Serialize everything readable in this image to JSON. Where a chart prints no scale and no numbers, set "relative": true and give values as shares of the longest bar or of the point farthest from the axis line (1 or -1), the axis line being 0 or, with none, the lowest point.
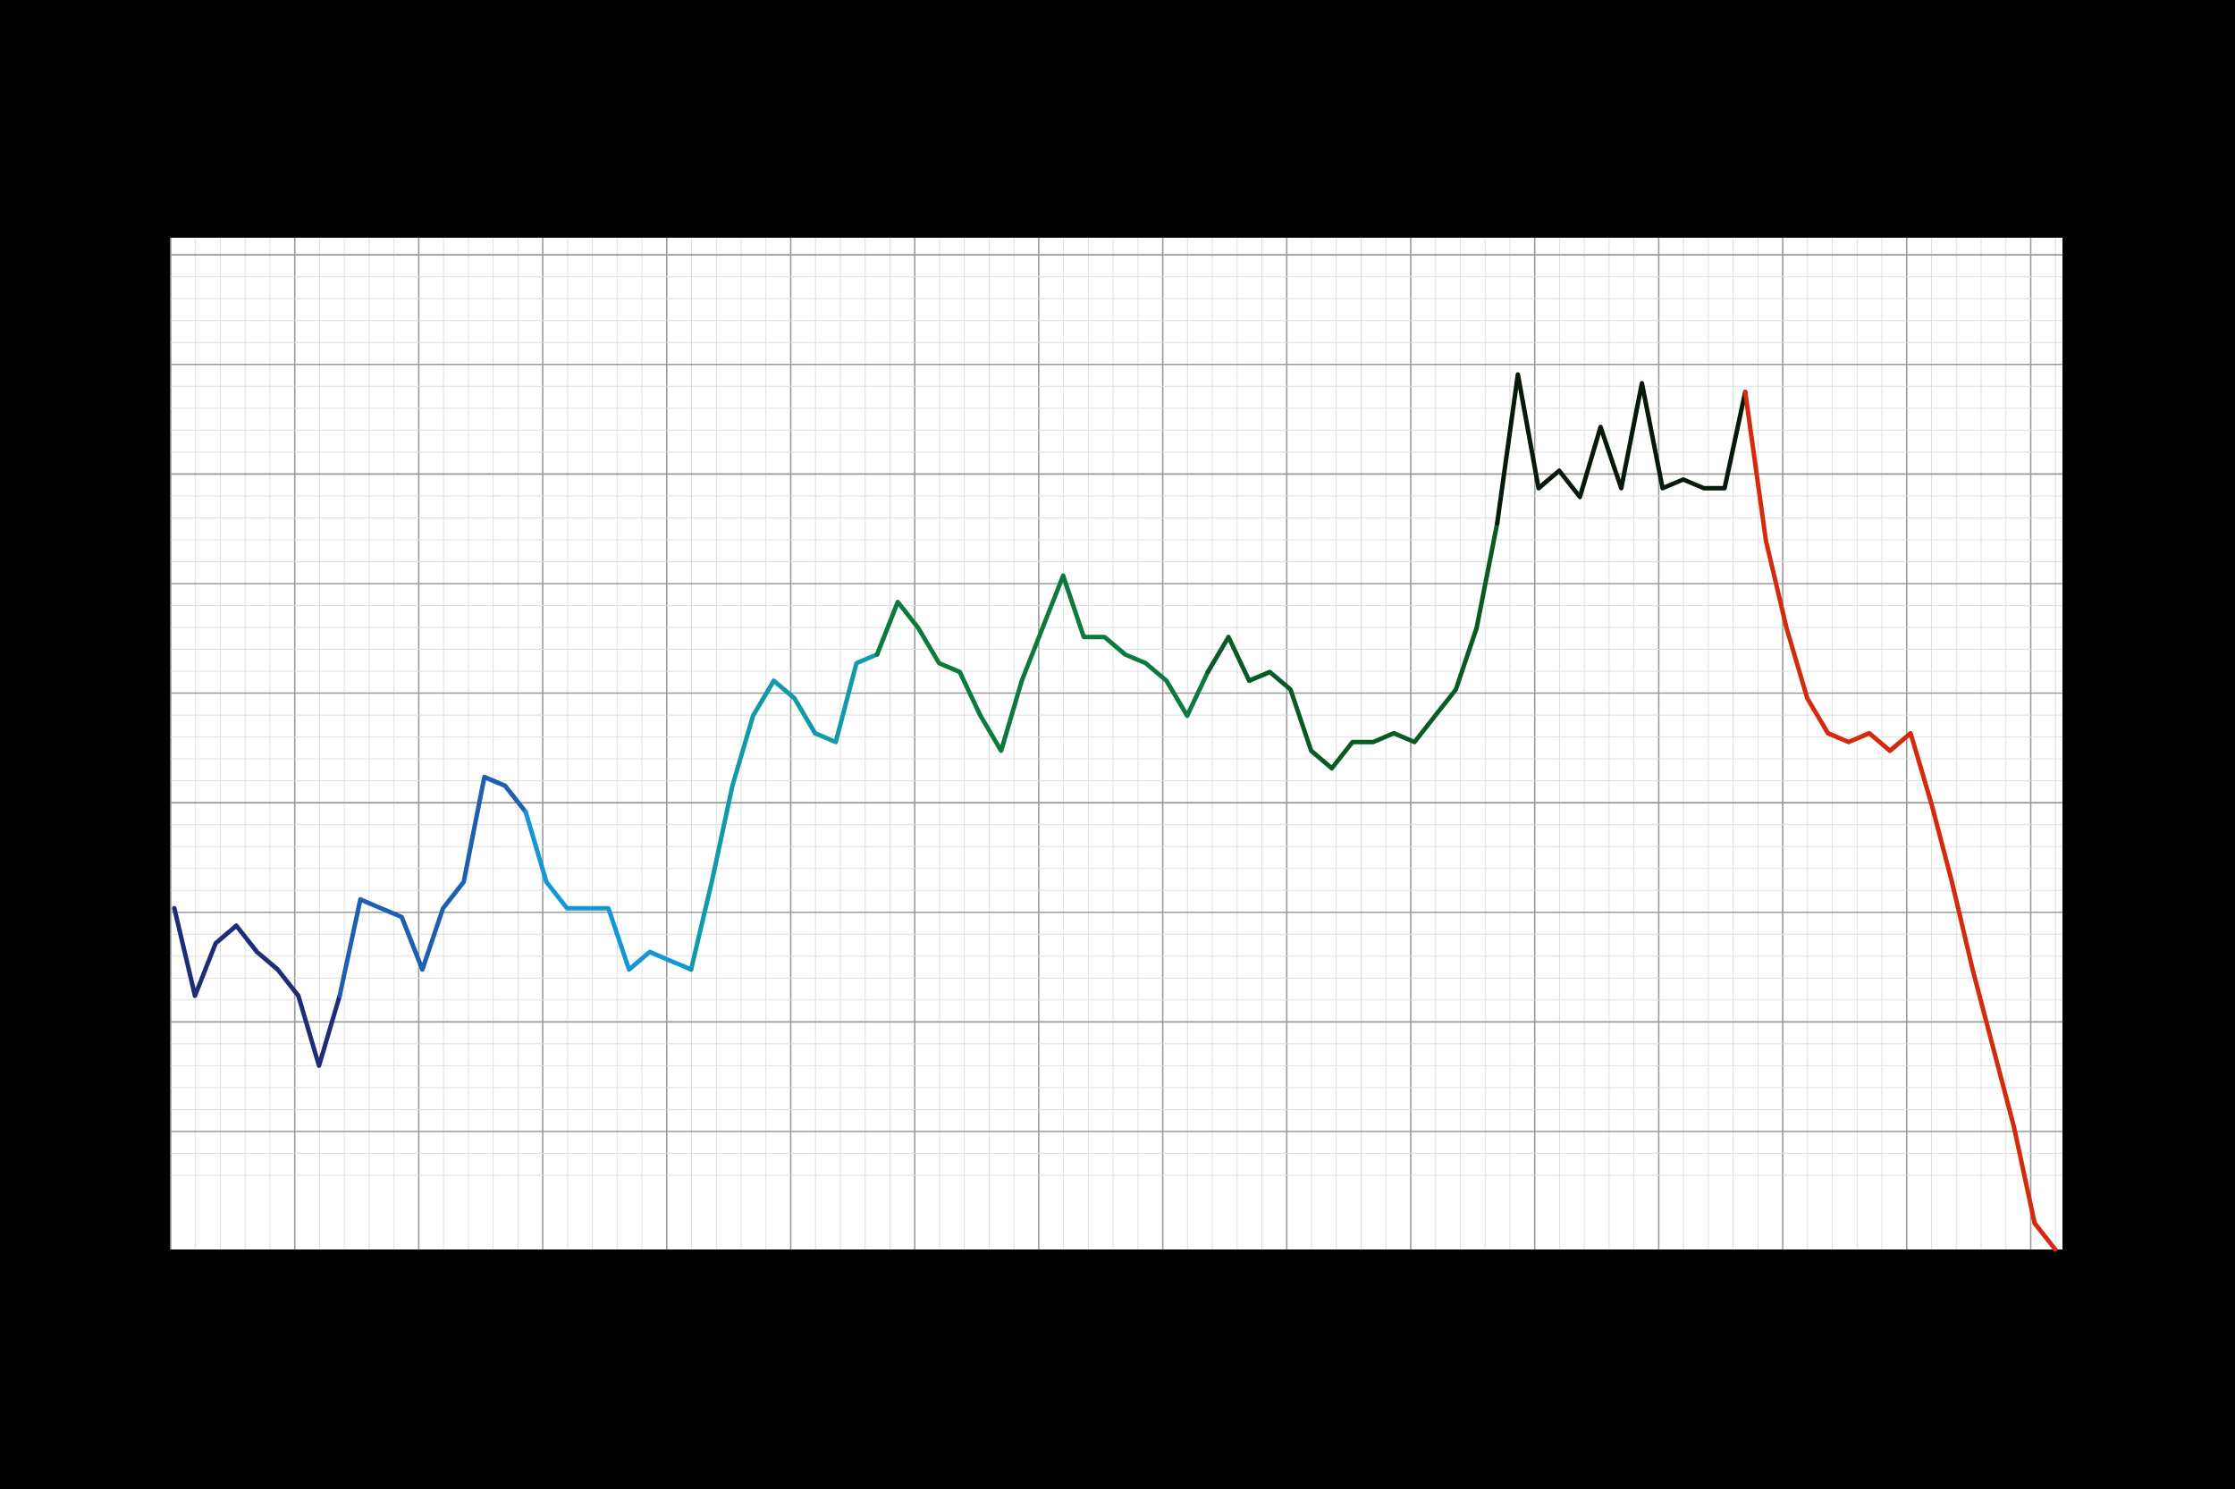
{
  "chart_data": {
    "type": "line",
    "relative": true,
    "grid": true,
    "marker": "none",
    "line_style": "solid",
    "categories": [
      null,
      null,
      null,
      null,
      null,
      null,
      null,
      null,
      null,
      null,
      null,
      null,
      null,
      null,
      null,
      null,
      null,
      null,
      null,
      null,
      null,
      null,
      null,
      null,
      null,
      null,
      null,
      null,
      null,
      null,
      null,
      null,
      null,
      null,
      null,
      null,
      null,
      null,
      null,
      null,
      null,
      null,
      null,
      null,
      null,
      null,
      null,
      null,
      null,
      null,
      null,
      null,
      null,
      null,
      null,
      null,
      null,
      null,
      null,
      null,
      null,
      null,
      null,
      null,
      null,
      null,
      null,
      null,
      null,
      null,
      null,
      null,
      null,
      null,
      null,
      null,
      null,
      null,
      null,
      null,
      null,
      null,
      null,
      null,
      null,
      null,
      null,
      null,
      null,
      null,
      null,
      null
    ],
    "series": [
      {
        "color": "#1f2d78",
        "values": [
          0.39,
          0.29,
          0.35,
          0.37,
          0.34,
          0.32,
          0.29,
          0.21,
          0.29,
          null,
          null,
          null,
          null,
          null,
          null,
          null,
          null,
          null,
          null,
          null,
          null,
          null,
          null,
          null,
          null,
          null,
          null,
          null,
          null,
          null,
          null,
          null,
          null,
          null,
          null,
          null,
          null,
          null,
          null,
          null,
          null,
          null,
          null,
          null,
          null,
          null,
          null,
          null,
          null,
          null,
          null,
          null,
          null,
          null,
          null,
          null,
          null,
          null,
          null,
          null,
          null,
          null,
          null,
          null,
          null,
          null,
          null,
          null,
          null,
          null,
          null,
          null,
          null,
          null,
          null,
          null,
          null,
          null,
          null,
          null,
          null,
          null,
          null,
          null,
          null,
          null,
          null,
          null,
          null,
          null,
          null,
          null
        ]
      },
      {
        "color": "#1f5fb0",
        "values": [
          null,
          null,
          null,
          null,
          null,
          null,
          null,
          null,
          0.29,
          0.4,
          0.39,
          0.38,
          0.32,
          0.39,
          0.42,
          0.54,
          0.53,
          0.5,
          null,
          null,
          null,
          null,
          null,
          null,
          null,
          null,
          null,
          null,
          null,
          null,
          null,
          null,
          null,
          null,
          null,
          null,
          null,
          null,
          null,
          null,
          null,
          null,
          null,
          null,
          null,
          null,
          null,
          null,
          null,
          null,
          null,
          null,
          null,
          null,
          null,
          null,
          null,
          null,
          null,
          null,
          null,
          null,
          null,
          null,
          null,
          null,
          null,
          null,
          null,
          null,
          null,
          null,
          null,
          null,
          null,
          null,
          null,
          null,
          null,
          null,
          null,
          null,
          null,
          null,
          null,
          null,
          null,
          null,
          null,
          null,
          null,
          null
        ]
      },
      {
        "color": "#1596d6",
        "values": [
          null,
          null,
          null,
          null,
          null,
          null,
          null,
          null,
          null,
          null,
          null,
          null,
          null,
          null,
          null,
          null,
          null,
          0.5,
          0.42,
          0.39,
          0.39,
          0.39,
          0.32,
          0.34,
          0.33,
          0.32,
          null,
          null,
          null,
          null,
          null,
          null,
          null,
          null,
          null,
          null,
          null,
          null,
          null,
          null,
          null,
          null,
          null,
          null,
          null,
          null,
          null,
          null,
          null,
          null,
          null,
          null,
          null,
          null,
          null,
          null,
          null,
          null,
          null,
          null,
          null,
          null,
          null,
          null,
          null,
          null,
          null,
          null,
          null,
          null,
          null,
          null,
          null,
          null,
          null,
          null,
          null,
          null,
          null,
          null,
          null,
          null,
          null,
          null,
          null,
          null,
          null,
          null,
          null,
          null,
          null,
          null
        ]
      },
      {
        "color": "#129aa8",
        "values": [
          null,
          null,
          null,
          null,
          null,
          null,
          null,
          null,
          null,
          null,
          null,
          null,
          null,
          null,
          null,
          null,
          null,
          null,
          null,
          null,
          null,
          null,
          null,
          null,
          null,
          0.32,
          0.42,
          0.53,
          0.61,
          0.65,
          0.63,
          0.59,
          0.58,
          0.67,
          0.68,
          null,
          null,
          null,
          null,
          null,
          null,
          null,
          null,
          null,
          null,
          null,
          null,
          null,
          null,
          null,
          null,
          null,
          null,
          null,
          null,
          null,
          null,
          null,
          null,
          null,
          null,
          null,
          null,
          null,
          null,
          null,
          null,
          null,
          null,
          null,
          null,
          null,
          null,
          null,
          null,
          null,
          null,
          null,
          null,
          null,
          null,
          null,
          null,
          null,
          null,
          null,
          null,
          null,
          null,
          null,
          null,
          null
        ]
      },
      {
        "color": "#0c7a3c",
        "values": [
          null,
          null,
          null,
          null,
          null,
          null,
          null,
          null,
          null,
          null,
          null,
          null,
          null,
          null,
          null,
          null,
          null,
          null,
          null,
          null,
          null,
          null,
          null,
          null,
          null,
          null,
          null,
          null,
          null,
          null,
          null,
          null,
          null,
          null,
          0.68,
          0.74,
          0.71,
          0.67,
          0.66,
          0.61,
          0.57,
          0.65,
          0.71,
          0.77,
          0.7,
          0.7,
          0.68,
          0.67,
          0.65,
          0.61,
          0.66,
          null,
          null,
          null,
          null,
          null,
          null,
          null,
          null,
          null,
          null,
          null,
          null,
          null,
          null,
          null,
          null,
          null,
          null,
          null,
          null,
          null,
          null,
          null,
          null,
          null,
          null,
          null,
          null,
          null,
          null,
          null,
          null,
          null,
          null,
          null,
          null,
          null,
          null,
          null,
          null,
          null
        ]
      },
      {
        "color": "#0a5a25",
        "values": [
          null,
          null,
          null,
          null,
          null,
          null,
          null,
          null,
          null,
          null,
          null,
          null,
          null,
          null,
          null,
          null,
          null,
          null,
          null,
          null,
          null,
          null,
          null,
          null,
          null,
          null,
          null,
          null,
          null,
          null,
          null,
          null,
          null,
          null,
          null,
          null,
          null,
          null,
          null,
          null,
          null,
          null,
          null,
          null,
          null,
          null,
          null,
          null,
          null,
          null,
          0.66,
          0.7,
          0.65,
          0.66,
          0.64,
          0.57,
          0.55,
          0.58,
          0.58,
          0.59,
          0.58,
          0.61,
          0.64,
          0.71,
          0.83,
          null,
          null,
          null,
          null,
          null,
          null,
          null,
          null,
          null,
          null,
          null,
          null,
          null,
          null,
          null,
          null,
          null,
          null,
          null,
          null,
          null,
          null,
          null,
          null,
          null,
          null,
          null
        ]
      },
      {
        "color": "#061a0c",
        "values": [
          null,
          null,
          null,
          null,
          null,
          null,
          null,
          null,
          null,
          null,
          null,
          null,
          null,
          null,
          null,
          null,
          null,
          null,
          null,
          null,
          null,
          null,
          null,
          null,
          null,
          null,
          null,
          null,
          null,
          null,
          null,
          null,
          null,
          null,
          null,
          null,
          null,
          null,
          null,
          null,
          null,
          null,
          null,
          null,
          null,
          null,
          null,
          null,
          null,
          null,
          null,
          null,
          null,
          null,
          null,
          null,
          null,
          null,
          null,
          null,
          null,
          null,
          null,
          null,
          0.83,
          1,
          0.87,
          0.89,
          0.86,
          0.94,
          0.87,
          0.99,
          0.87,
          0.88,
          0.87,
          0.87,
          0.98,
          null,
          null,
          null,
          null,
          null,
          null,
          null,
          null,
          null,
          null,
          null,
          null,
          null,
          null,
          null
        ]
      },
      {
        "color": "#d42a0e",
        "values": [
          null,
          null,
          null,
          null,
          null,
          null,
          null,
          null,
          null,
          null,
          null,
          null,
          null,
          null,
          null,
          null,
          null,
          null,
          null,
          null,
          null,
          null,
          null,
          null,
          null,
          null,
          null,
          null,
          null,
          null,
          null,
          null,
          null,
          null,
          null,
          null,
          null,
          null,
          null,
          null,
          null,
          null,
          null,
          null,
          null,
          null,
          null,
          null,
          null,
          null,
          null,
          null,
          null,
          null,
          null,
          null,
          null,
          null,
          null,
          null,
          null,
          null,
          null,
          null,
          null,
          null,
          null,
          null,
          null,
          null,
          null,
          null,
          null,
          null,
          null,
          null,
          0.98,
          0.81,
          0.71,
          0.63,
          0.59,
          0.58,
          0.59,
          0.57,
          0.59,
          0.51,
          0.42,
          0.32,
          0.23,
          0.14,
          0.03,
          0
        ]
      }
    ]
  }
}
